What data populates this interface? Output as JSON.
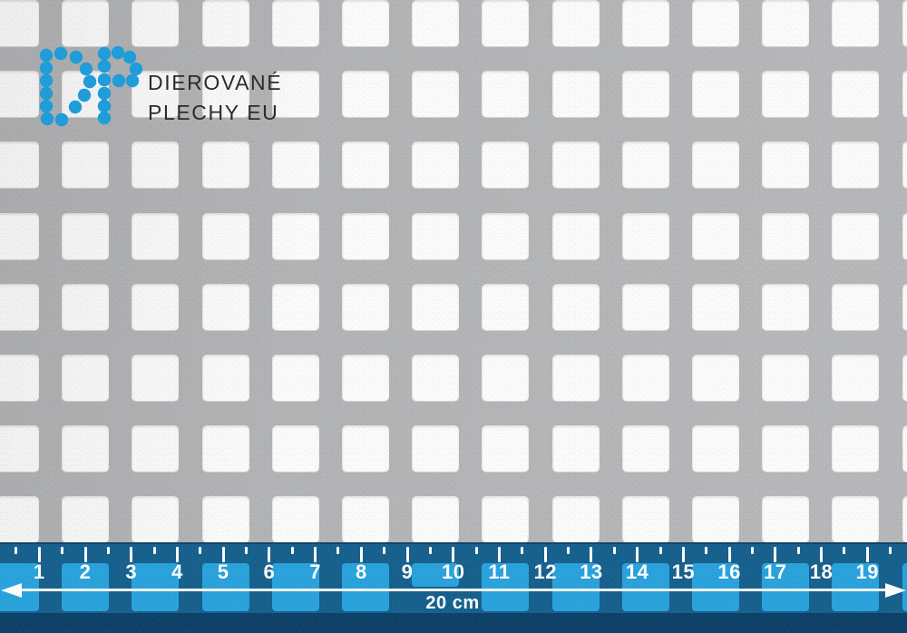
{
  "brand": {
    "monogram": "DP",
    "line1": "DIEROVANÉ",
    "line2": "PLECHY EU"
  },
  "ruler": {
    "numbers": [
      "1",
      "2",
      "3",
      "4",
      "5",
      "6",
      "7",
      "8",
      "9",
      "10",
      "11",
      "12",
      "13",
      "14",
      "15",
      "16",
      "17",
      "18",
      "19"
    ],
    "length_label": "20 cm"
  },
  "colors": {
    "sheet_gray": "#b3b4b6",
    "hole_white": "#fcfcfd",
    "logo_blue": "#1f9edb",
    "brand_text": "#2b2b2b",
    "ruler_blue": "#17618e",
    "ruler_hole_blue": "#2aa3dd",
    "ruler_base_navy": "#0e426a",
    "tick_white": "#ffffff"
  }
}
